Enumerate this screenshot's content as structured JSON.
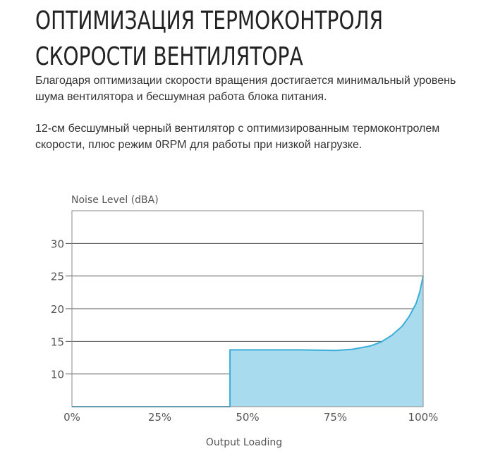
{
  "header": {
    "title_line1": "ОПТИМИЗАЦИЯ ТЕРМОКОНТРОЛЯ",
    "title_line2": "СКОРОСТИ ВЕНТИЛЯТОРА"
  },
  "paragraphs": [
    "Благодаря оптимизации скорости вращения достигается минимальный уровень шума вентилятора и бесшумная работа блока питания.",
    "12-см бесшумный черный вентилятор с оптимизированным термоконтролем скорости, плюс режим 0RPM для работы при низкой нагрузке."
  ],
  "chart_data": {
    "type": "area",
    "ylabel": "Noise Level (dBA)",
    "xlabel": "Output Loading",
    "x_ticks": [
      "0%",
      "25%",
      "50%",
      "75%",
      "100%"
    ],
    "y_ticks": [
      "10",
      "15",
      "20",
      "25",
      "30"
    ],
    "xlim": [
      0,
      100
    ],
    "ylim": [
      5,
      35
    ],
    "grid": true,
    "colors": {
      "line": "#3aaed8",
      "fill": "#a9dbef",
      "grid": "#555555",
      "frame": "#888888",
      "text": "#555555"
    },
    "x": [
      0,
      45,
      45,
      55,
      65,
      75,
      80,
      85,
      88,
      91,
      94,
      96,
      98,
      99,
      100
    ],
    "y": [
      5,
      5,
      13.7,
      13.7,
      13.7,
      13.6,
      13.8,
      14.3,
      14.9,
      15.9,
      17.3,
      18.8,
      20.8,
      22.5,
      25
    ]
  }
}
